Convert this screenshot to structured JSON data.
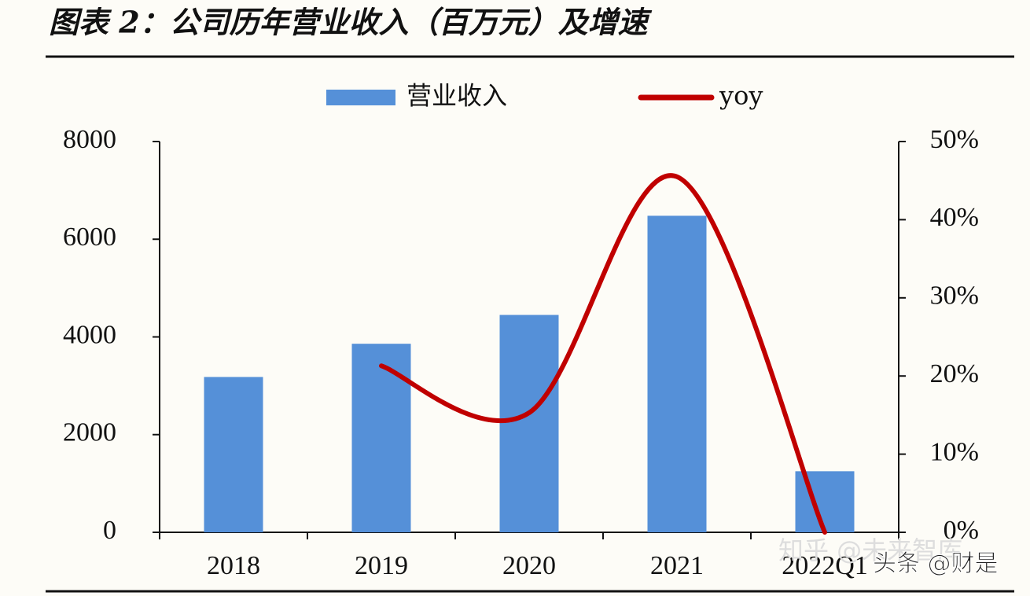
{
  "chart_data": {
    "type": "bar-line",
    "title": "图表 2：公司历年营业收入（百万元）及增速",
    "categories": [
      "2018",
      "2019",
      "2020",
      "2021",
      "2022Q1"
    ],
    "series": [
      {
        "name": "营业收入",
        "type": "bar",
        "color": "#5590d8",
        "values": [
          3180,
          3860,
          4450,
          6480,
          1250
        ]
      },
      {
        "name": "yoy",
        "type": "line",
        "axis": "y2",
        "color": "#c00000",
        "values": [
          null,
          21.3,
          15.3,
          45.5,
          0
        ]
      }
    ],
    "ylim": [
      0,
      8000
    ],
    "yticks": [
      0,
      2000,
      4000,
      6000,
      8000
    ],
    "y2lim": [
      0,
      50
    ],
    "y2ticks": [
      {
        "value": 0,
        "label": "0%"
      },
      {
        "value": 10,
        "label": "10%"
      },
      {
        "value": 20,
        "label": "20%"
      },
      {
        "value": 30,
        "label": "30%"
      },
      {
        "value": 40,
        "label": "40%"
      },
      {
        "value": 50,
        "label": "50%"
      }
    ],
    "watermarks": [
      "知乎 @未来智库",
      "头条 @财是"
    ]
  }
}
